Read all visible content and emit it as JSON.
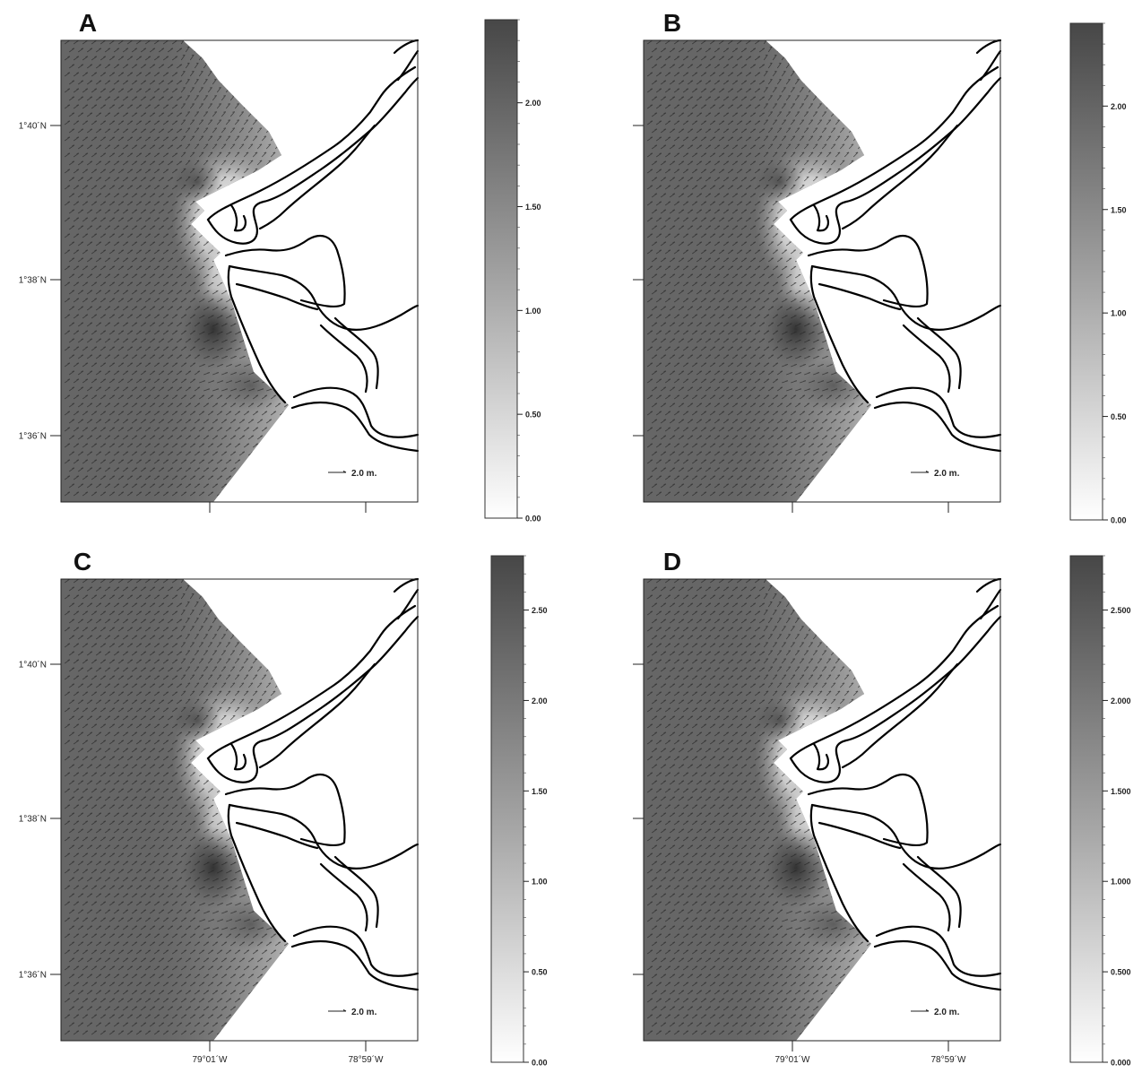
{
  "figure": {
    "panels": [
      {
        "id": "A",
        "letter": "A",
        "lat_ticks": [
          "1°40´N",
          "1°38´N",
          "1°36´N"
        ],
        "lon_ticks": [
          "",
          ""
        ],
        "colorbar_ticks": [
          "2.00",
          "1.50",
          "1.00",
          "0.50",
          "0.00"
        ],
        "colorbar_max": 2.4,
        "scale_label": "2.0 m."
      },
      {
        "id": "B",
        "letter": "B",
        "lat_ticks": [
          "",
          "",
          ""
        ],
        "lon_ticks": [
          "",
          ""
        ],
        "colorbar_ticks": [
          "2.00",
          "1.50",
          "1.00",
          "0.50",
          "0.00"
        ],
        "colorbar_max": 2.4,
        "scale_label": "2.0 m."
      },
      {
        "id": "C",
        "letter": "C",
        "lat_ticks": [
          "1°40´N",
          "1°38´N",
          "1°36´N"
        ],
        "lon_ticks": [
          "79°01´W",
          "78°59´W"
        ],
        "colorbar_ticks": [
          "2.50",
          "2.00",
          "1.50",
          "1.00",
          "0.50",
          "0.00"
        ],
        "colorbar_max": 2.8,
        "scale_label": "2.0 m."
      },
      {
        "id": "D",
        "letter": "D",
        "lat_ticks": [
          "",
          "",
          ""
        ],
        "lon_ticks": [
          "79°01´W",
          "78°59´W"
        ],
        "colorbar_ticks": [
          "2.500",
          "2.000",
          "1.500",
          "1.000",
          "0.500",
          "0.000"
        ],
        "colorbar_max": 2.8,
        "scale_label": "2.0 m."
      }
    ],
    "colors": {
      "sea_dark": "#5a5a5a",
      "sea_light": "#f2f2f2",
      "coastline": "#000000",
      "arrows": "#2a2a2a"
    }
  }
}
